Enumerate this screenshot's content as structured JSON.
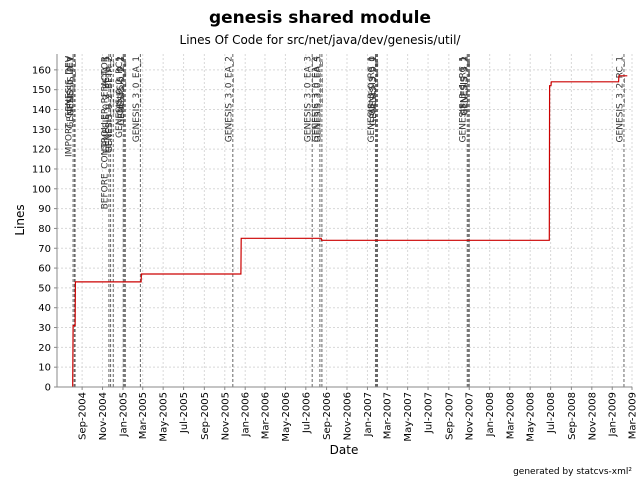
{
  "chart_data": {
    "type": "line",
    "title": "genesis shared module",
    "subtitle": "Lines Of Code for src/net/java/dev/genesis/util/",
    "xlabel": "Date",
    "ylabel": "Lines",
    "credit": "generated by statcvs-xml²",
    "ylim": [
      0,
      168
    ],
    "xlim": [
      "2004-06-18",
      "2009-03-01"
    ],
    "y_ticks": [
      0,
      10,
      20,
      30,
      40,
      50,
      60,
      70,
      80,
      90,
      100,
      110,
      120,
      130,
      140,
      150,
      160
    ],
    "x_ticks": [
      {
        "date": "2004-09-01",
        "label": "Sep-2004"
      },
      {
        "date": "2004-11-01",
        "label": "Nov-2004"
      },
      {
        "date": "2005-01-01",
        "label": "Jan-2005"
      },
      {
        "date": "2005-03-01",
        "label": "Mar-2005"
      },
      {
        "date": "2005-05-01",
        "label": "May-2005"
      },
      {
        "date": "2005-07-01",
        "label": "Jul-2005"
      },
      {
        "date": "2005-09-01",
        "label": "Sep-2005"
      },
      {
        "date": "2005-11-01",
        "label": "Nov-2005"
      },
      {
        "date": "2006-01-01",
        "label": "Jan-2006"
      },
      {
        "date": "2006-03-01",
        "label": "Mar-2006"
      },
      {
        "date": "2006-05-01",
        "label": "May-2006"
      },
      {
        "date": "2006-07-01",
        "label": "Jul-2006"
      },
      {
        "date": "2006-09-01",
        "label": "Sep-2006"
      },
      {
        "date": "2006-11-01",
        "label": "Nov-2006"
      },
      {
        "date": "2007-01-01",
        "label": "Jan-2007"
      },
      {
        "date": "2007-03-01",
        "label": "Mar-2007"
      },
      {
        "date": "2007-05-01",
        "label": "May-2007"
      },
      {
        "date": "2007-07-01",
        "label": "Jul-2007"
      },
      {
        "date": "2007-09-01",
        "label": "Sep-2007"
      },
      {
        "date": "2007-11-01",
        "label": "Nov-2007"
      },
      {
        "date": "2008-01-01",
        "label": "Jan-2008"
      },
      {
        "date": "2008-03-01",
        "label": "Mar-2008"
      },
      {
        "date": "2008-05-01",
        "label": "May-2008"
      },
      {
        "date": "2008-07-01",
        "label": "Jul-2008"
      },
      {
        "date": "2008-09-01",
        "label": "Sep-2008"
      },
      {
        "date": "2008-11-01",
        "label": "Nov-2008"
      },
      {
        "date": "2009-01-01",
        "label": "Jan-2009"
      },
      {
        "date": "2009-03-01",
        "label": "Mar-2009"
      }
    ],
    "grid": true,
    "series": [
      {
        "color": "#cc0000",
        "step": true,
        "points": [
          {
            "x": "2004-08-04",
            "y": 0
          },
          {
            "x": "2004-08-05",
            "y": 31
          },
          {
            "x": "2004-08-11",
            "y": 31
          },
          {
            "x": "2004-08-12",
            "y": 53
          },
          {
            "x": "2005-02-24",
            "y": 53
          },
          {
            "x": "2005-02-25",
            "y": 57
          },
          {
            "x": "2005-12-19",
            "y": 57
          },
          {
            "x": "2005-12-20",
            "y": 75
          },
          {
            "x": "2006-08-16",
            "y": 75
          },
          {
            "x": "2006-08-17",
            "y": 74
          },
          {
            "x": "2008-06-27",
            "y": 74
          },
          {
            "x": "2008-06-28",
            "y": 152
          },
          {
            "x": "2008-07-02",
            "y": 152
          },
          {
            "x": "2008-07-03",
            "y": 154
          },
          {
            "x": "2009-01-20",
            "y": 154
          },
          {
            "x": "2009-01-21",
            "y": 157
          },
          {
            "x": "2009-02-15",
            "y": 157
          }
        ]
      }
    ],
    "markers": [
      {
        "date": "2004-08-05",
        "label": "IMPORT_GENESIS_DEV"
      },
      {
        "date": "2004-08-09",
        "label": "GENESIS_0_DEV"
      },
      {
        "date": "2004-08-11",
        "label": "GENESIS_0_1"
      },
      {
        "date": "2004-11-20",
        "label": "BEFORE_CONTROLLER_REFACTOR"
      },
      {
        "date": "2004-11-25",
        "label": "GENESIS_0_2_BETA_1"
      },
      {
        "date": "2004-12-03",
        "label": "GENESIS_0_2_BETA_2"
      },
      {
        "date": "2005-01-02",
        "label": "GENESIS_0_2_RC1"
      },
      {
        "date": "2005-01-05",
        "label": "GENESIS_0_2"
      },
      {
        "date": "2005-01-08",
        "label": "GENESIS_0_2_1"
      },
      {
        "date": "2005-02-22",
        "label": "GENESIS_3_0_EA_1"
      },
      {
        "date": "2005-11-25",
        "label": "GENESIS_3_0_EA_2"
      },
      {
        "date": "2006-07-20",
        "label": "GENESIS_3_0_EA_3"
      },
      {
        "date": "2006-08-12",
        "label": "GENESIS_3_0_EA_4"
      },
      {
        "date": "2006-08-18",
        "label": "GENESIS_3_0_EA_5"
      },
      {
        "date": "2007-01-25",
        "label": "GENESIS_3_0_RC_1"
      },
      {
        "date": "2007-01-28",
        "label": "GENESIS_3_0"
      },
      {
        "date": "2007-01-31",
        "label": "GENESIS_3_0_1"
      },
      {
        "date": "2007-10-26",
        "label": "GENESIS_3_1_RC_1"
      },
      {
        "date": "2007-10-29",
        "label": "GENESIS_3_1"
      },
      {
        "date": "2007-11-01",
        "label": "GENESIS_3_2"
      },
      {
        "date": "2009-02-05",
        "label": "GENESIS_3_2_RC_1"
      }
    ]
  }
}
